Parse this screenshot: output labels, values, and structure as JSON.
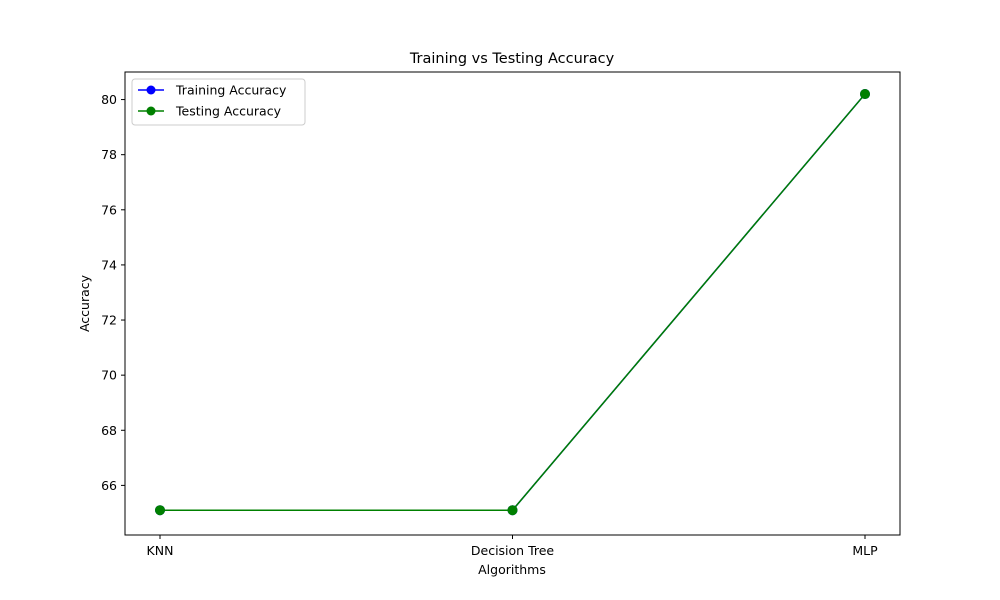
{
  "chart_data": {
    "type": "line",
    "title": "Training vs Testing Accuracy",
    "xlabel": "Algorithms",
    "ylabel": "Accuracy",
    "categories": [
      "KNN",
      "Decision Tree",
      "MLP"
    ],
    "ylim": [
      64.2,
      81.0
    ],
    "yticks": [
      66,
      68,
      70,
      72,
      74,
      76,
      78,
      80
    ],
    "grid": false,
    "legend_position": "upper-left",
    "series": [
      {
        "name": "Training Accuracy",
        "color": "#0000ff",
        "marker": "circle",
        "values": [
          65.1,
          65.1,
          80.2
        ]
      },
      {
        "name": "Testing Accuracy",
        "color": "#008000",
        "marker": "circle",
        "values": [
          65.1,
          65.1,
          80.2
        ]
      }
    ]
  }
}
